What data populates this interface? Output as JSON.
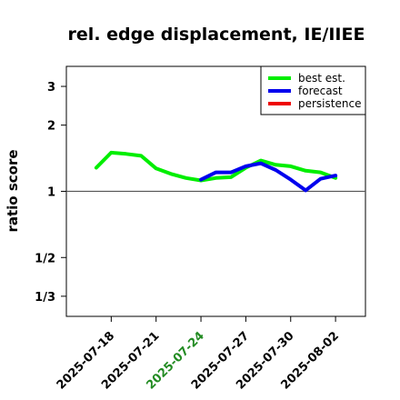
{
  "chart_data": {
    "type": "line",
    "title": "rel. edge displacement, IE/IIEE",
    "ylabel": "ratio score",
    "xlabel": "",
    "y_scale": "log",
    "ylim": [
      0.27,
      3.7
    ],
    "xlim": [
      "2025-07-15",
      "2025-08-04"
    ],
    "reference_line": 1,
    "y_ticks": [
      {
        "value": 0.3333,
        "label": "1/3"
      },
      {
        "value": 0.5,
        "label": "1/2"
      },
      {
        "value": 1,
        "label": "1"
      },
      {
        "value": 2,
        "label": "2"
      },
      {
        "value": 3,
        "label": "3"
      }
    ],
    "x_ticks": [
      {
        "date": "2025-07-18",
        "label": "2025-07-18",
        "color": "#000000"
      },
      {
        "date": "2025-07-21",
        "label": "2025-07-21",
        "color": "#000000"
      },
      {
        "date": "2025-07-24",
        "label": "2025-07-24",
        "color": "#228B22"
      },
      {
        "date": "2025-07-27",
        "label": "2025-07-27",
        "color": "#000000"
      },
      {
        "date": "2025-07-30",
        "label": "2025-07-30",
        "color": "#000000"
      },
      {
        "date": "2025-08-02",
        "label": "2025-08-02",
        "color": "#000000"
      }
    ],
    "series": [
      {
        "name": "best est.",
        "color": "#00EE00",
        "x": [
          "2025-07-17",
          "2025-07-18",
          "2025-07-19",
          "2025-07-20",
          "2025-07-21",
          "2025-07-22",
          "2025-07-23",
          "2025-07-24",
          "2025-07-25",
          "2025-07-26",
          "2025-07-27",
          "2025-07-28",
          "2025-07-29",
          "2025-07-30",
          "2025-07-31",
          "2025-08-01",
          "2025-08-02"
        ],
        "y": [
          1.28,
          1.5,
          1.48,
          1.45,
          1.27,
          1.2,
          1.15,
          1.12,
          1.15,
          1.16,
          1.28,
          1.38,
          1.32,
          1.3,
          1.24,
          1.22,
          1.15
        ]
      },
      {
        "name": "forecast",
        "color": "#0000EE",
        "x": [
          "2025-07-24",
          "2025-07-25",
          "2025-07-26",
          "2025-07-27",
          "2025-07-28",
          "2025-07-29",
          "2025-07-30",
          "2025-07-31",
          "2025-08-01",
          "2025-08-02"
        ],
        "y": [
          1.13,
          1.22,
          1.22,
          1.3,
          1.34,
          1.25,
          1.13,
          1.01,
          1.14,
          1.18
        ]
      },
      {
        "name": "persistence",
        "color": "#EE0000",
        "x": [],
        "y": []
      }
    ],
    "legend": {
      "position": "top-right"
    },
    "grid": false
  }
}
